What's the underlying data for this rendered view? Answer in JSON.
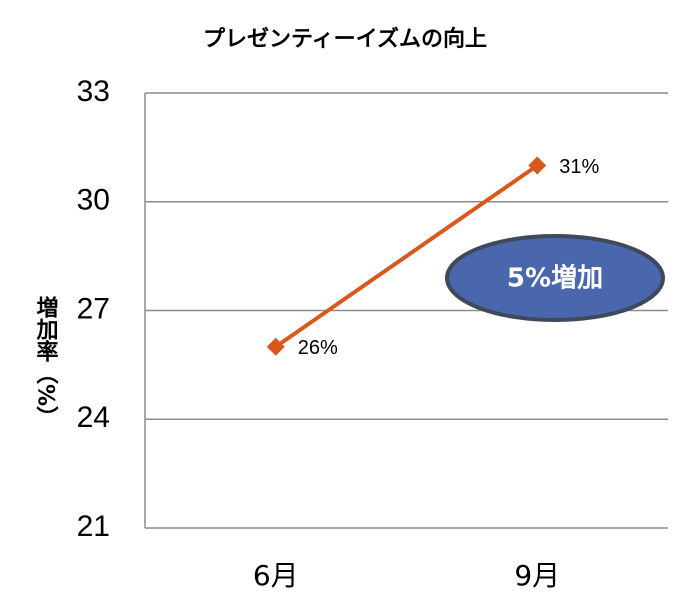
{
  "chart_data": {
    "type": "line",
    "title": "プレゼンティーイズムの向上",
    "y_label": "増加率（%）",
    "categories": [
      "6月",
      "9月"
    ],
    "series": [
      {
        "name": "増加率",
        "color": "#d9581e",
        "values": [
          26,
          31
        ],
        "value_labels": [
          "26%",
          "31%"
        ]
      }
    ],
    "ylim": [
      21,
      33
    ],
    "yticks": [
      21,
      24,
      27,
      30,
      33
    ],
    "grid": true,
    "annotation": "5%増加",
    "annotation_color": "#4a66ac"
  }
}
